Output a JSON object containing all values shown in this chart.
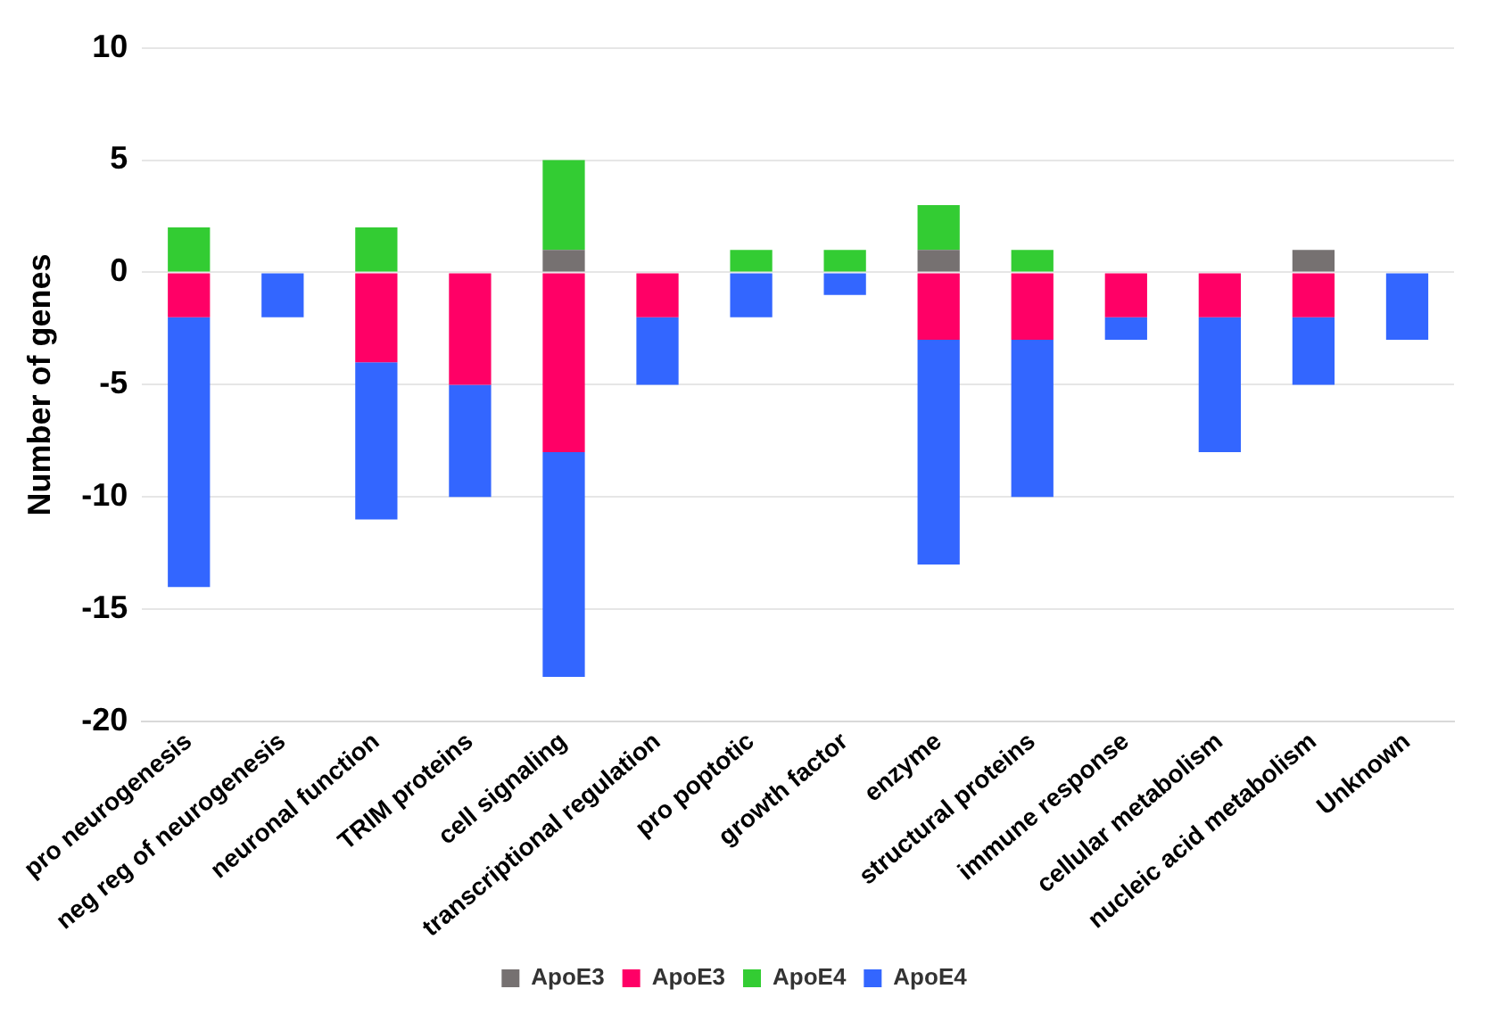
{
  "chart_data": {
    "type": "bar",
    "stacked": true,
    "ylabel": "Number of genes",
    "categories": [
      "pro neurogenesis",
      "neg reg of neurogenesis",
      "neuronal function",
      "TRIM proteins",
      "cell signaling",
      "transcriptional regulation",
      "pro poptotic",
      "growth factor",
      "enzyme",
      "structural proteins",
      "immune response",
      "cellular metabolism",
      "nucleic acid metabolism",
      "Unknown"
    ],
    "series": [
      {
        "name": "ApoE3",
        "color": "#767171",
        "values": [
          0,
          0,
          0,
          0,
          1,
          0,
          0,
          0,
          1,
          0,
          0,
          0,
          1,
          0
        ]
      },
      {
        "name": "ApoE3",
        "color": "#ff0066",
        "values": [
          -2,
          0,
          -4,
          -5,
          -8,
          -2,
          0,
          0,
          -3,
          -3,
          -2,
          -2,
          -2,
          0
        ]
      },
      {
        "name": "ApoE4",
        "color": "#33cc33",
        "values": [
          2,
          0,
          2,
          0,
          4,
          0,
          1,
          1,
          2,
          1,
          0,
          0,
          0,
          0
        ]
      },
      {
        "name": "ApoE4",
        "color": "#3366ff",
        "values": [
          -12,
          -2,
          -7,
          -5,
          -10,
          -3,
          -2,
          -1,
          -10,
          -7,
          -1,
          -6,
          -3,
          -3
        ]
      }
    ],
    "ylim": [
      -20,
      10
    ],
    "yticks": [
      -20,
      -15,
      -10,
      -5,
      0,
      5,
      10
    ],
    "grid": "y",
    "legend": "bottom"
  }
}
